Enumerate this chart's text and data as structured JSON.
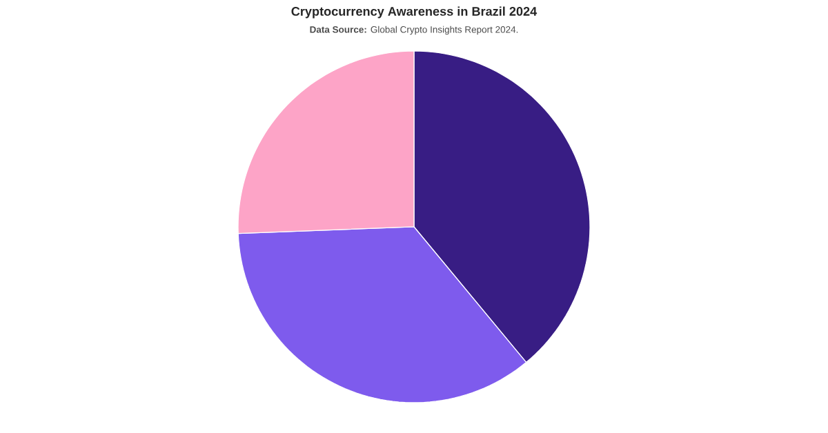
{
  "chart_data": {
    "type": "pie",
    "title": "Cryptocurrency Awareness in Brazil 2024",
    "subtitle": "**Data Source:** Global Crypto Insights Report 2024.",
    "categories": [
      null,
      null,
      null
    ],
    "values": [
      39,
      35.4,
      25.6
    ],
    "colors": [
      "#381d84",
      "#7e5bed",
      "#fda4c7"
    ]
  }
}
